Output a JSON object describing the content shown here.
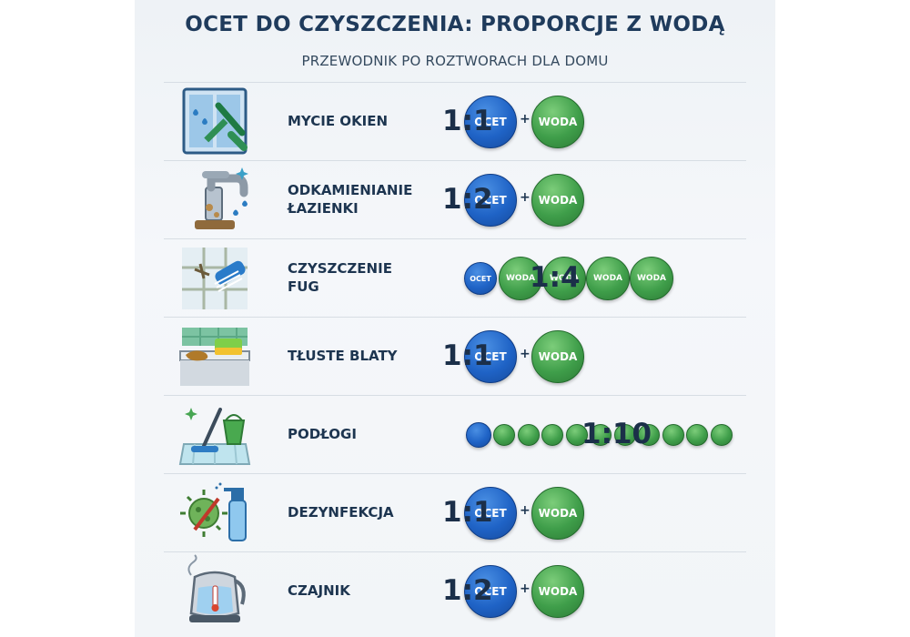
{
  "header": {
    "title": "OCET DO CZYSZCZENIA: PROPORCJE Z WODĄ",
    "subtitle": "PRZEWODNIK PO ROZTWORACH DLA DOMU"
  },
  "colors": {
    "vinegar": "#1f63c6",
    "water": "#3f9e4a",
    "title": "#1f3b5c"
  },
  "rows": [
    {
      "label": "MYCIE OKIEN",
      "icon": "window-squeegee-icon",
      "vinegar_label": "OCET",
      "water_label": "WODA",
      "vinegar_parts": 1,
      "water_parts": 1,
      "ratio": "1:1"
    },
    {
      "label": "ODKAMIENIANIE\nŁAZIENKI",
      "icon": "faucet-icon",
      "vinegar_label": "OCET",
      "water_label": "WODA",
      "vinegar_parts": 1,
      "water_parts": 2,
      "ratio": "1:2"
    },
    {
      "label": "CZYSZCZENIE\nFUG",
      "icon": "grout-brush-icon",
      "vinegar_label": "OCET",
      "water_label": "WODA",
      "vinegar_parts": 1,
      "water_parts": 4,
      "ratio": "1:4"
    },
    {
      "label": "TŁUSTE BLATY",
      "icon": "countertop-sponge-icon",
      "vinegar_label": "OCET",
      "water_label": "WODA",
      "vinegar_parts": 1,
      "water_parts": 1,
      "ratio": "1:1"
    },
    {
      "label": "PODŁOGI",
      "icon": "mop-bucket-icon",
      "vinegar_label": "",
      "water_label": "",
      "vinegar_parts": 1,
      "water_parts": 10,
      "ratio": "1:10"
    },
    {
      "label": "DEZYNFEKCJA",
      "icon": "germ-spray-icon",
      "vinegar_label": "OCET",
      "water_label": "WODA",
      "vinegar_parts": 1,
      "water_parts": 1,
      "ratio": "1:1"
    },
    {
      "label": "CZAJNIK",
      "icon": "kettle-icon",
      "vinegar_label": "OCET",
      "water_label": "WODA",
      "vinegar_parts": 1,
      "water_parts": 2,
      "ratio": "1:2"
    }
  ]
}
